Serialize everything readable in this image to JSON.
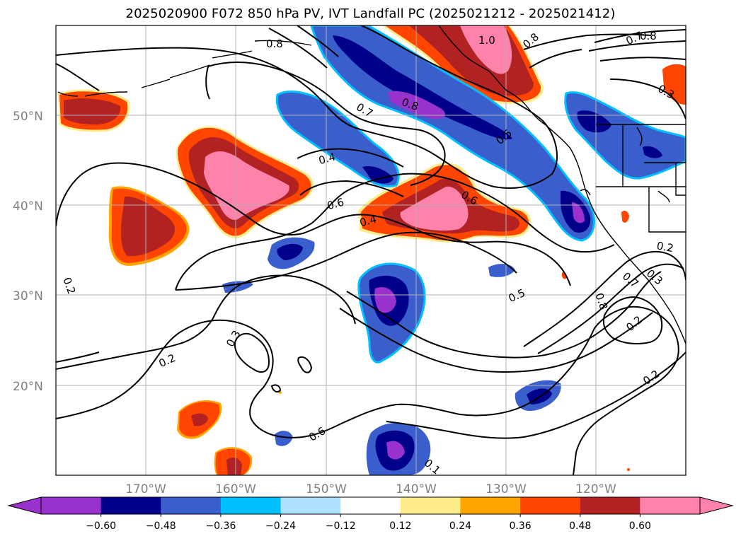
{
  "title": "2025020900 F072 850 hPa PV, IVT Landfall PC (2025021212 - 2025021412)",
  "map": {
    "lat_labels": [
      "50°N",
      "40°N",
      "30°N",
      "20°N"
    ],
    "lon_labels": [
      "170°W",
      "160°W",
      "150°W",
      "140°W",
      "130°W",
      "120°W"
    ],
    "extent": {
      "lon_min": -180,
      "lon_max": -110,
      "lat_min": 10,
      "lat_max": 60
    },
    "contour_labels": [
      "0.8",
      "1.0",
      "0.8",
      "0.7",
      "0.8",
      "0.7",
      "0.8",
      "0.5",
      "0.3",
      "0.4",
      "0.6",
      "0.4",
      "0.6",
      "0.2",
      "0.2",
      "0.3",
      "0.2",
      "0.3",
      "0.6",
      "0.7",
      "0.8",
      "0.5",
      "0.2",
      "0.2",
      "0.1"
    ]
  },
  "colorbar": {
    "ticks": [
      "−0.60",
      "−0.48",
      "−0.36",
      "−0.24",
      "−0.12",
      "0.12",
      "0.24",
      "0.36",
      "0.48",
      "0.60"
    ],
    "colors": [
      "#9932cc",
      "#00008b",
      "#3a5fcd",
      "#00bfff",
      "#b0e2ff",
      "#ffffff",
      "#ffec8b",
      "#ffa500",
      "#ff4500",
      "#b22222",
      "#ff82ab"
    ]
  }
}
